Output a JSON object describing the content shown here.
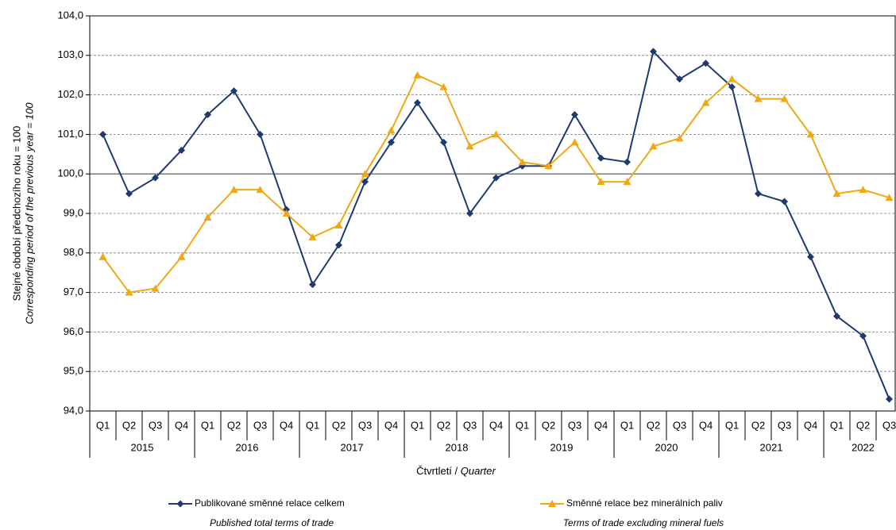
{
  "chart_data": {
    "type": "line",
    "y_label": "Stejné období předchozího roku = 100",
    "y_label_en": "Corresponding period of  the previous year = 100",
    "x_label": "Čtvrtletí / ",
    "x_label_en": "Quarter",
    "categories": [
      "Q1",
      "Q2",
      "Q3",
      "Q4",
      "Q1",
      "Q2",
      "Q3",
      "Q4",
      "Q1",
      "Q2",
      "Q3",
      "Q4",
      "Q1",
      "Q2",
      "Q3",
      "Q4",
      "Q1",
      "Q2",
      "Q3",
      "Q4",
      "Q1",
      "Q2",
      "Q3",
      "Q4",
      "Q1",
      "Q2",
      "Q3",
      "Q4",
      "Q1",
      "Q2",
      "Q3"
    ],
    "category_groups": [
      "2015",
      "2016",
      "2017",
      "2018",
      "2019",
      "2020",
      "2021",
      "2022"
    ],
    "series": [
      {
        "name": "Publikované směnné relace celkem",
        "name_en": "Published total terms of trade",
        "color": "#1f3a6e",
        "marker": "diamond",
        "values": [
          101.0,
          99.5,
          99.9,
          100.6,
          101.5,
          102.1,
          101.0,
          99.1,
          97.2,
          98.2,
          99.8,
          100.8,
          101.8,
          100.8,
          99.0,
          99.9,
          100.2,
          100.2,
          101.5,
          100.4,
          100.3,
          103.1,
          102.4,
          102.8,
          102.2,
          99.5,
          99.3,
          97.9,
          96.4,
          95.9,
          94.3
        ]
      },
      {
        "name": "Směnné relace bez minerálních paliv",
        "name_en": "Terms of trade excluding mineral fuels",
        "color": "#f0a814",
        "marker": "triangle",
        "values": [
          97.9,
          97.0,
          97.1,
          97.9,
          98.9,
          99.6,
          99.6,
          99.0,
          98.4,
          98.7,
          100.0,
          101.1,
          102.5,
          102.2,
          100.7,
          101.0,
          100.3,
          100.2,
          100.8,
          99.8,
          99.8,
          100.7,
          100.9,
          101.8,
          102.4,
          101.9,
          101.9,
          101.0,
          99.5,
          99.6,
          99.4
        ]
      }
    ],
    "ylim": [
      94,
      104
    ],
    "yticks": [
      {
        "value": 94,
        "label": "94,0"
      },
      {
        "value": 95,
        "label": "95,0"
      },
      {
        "value": 96,
        "label": "96,0"
      },
      {
        "value": 97,
        "label": "97,0"
      },
      {
        "value": 98,
        "label": "98,0"
      },
      {
        "value": 99,
        "label": "99,0"
      },
      {
        "value": 100,
        "label": "100,0"
      },
      {
        "value": 101,
        "label": "101,0"
      },
      {
        "value": 102,
        "label": "102,0"
      },
      {
        "value": 103,
        "label": "103,0"
      },
      {
        "value": 104,
        "label": "104,0"
      }
    ],
    "reference_line": 100,
    "grid": true
  }
}
